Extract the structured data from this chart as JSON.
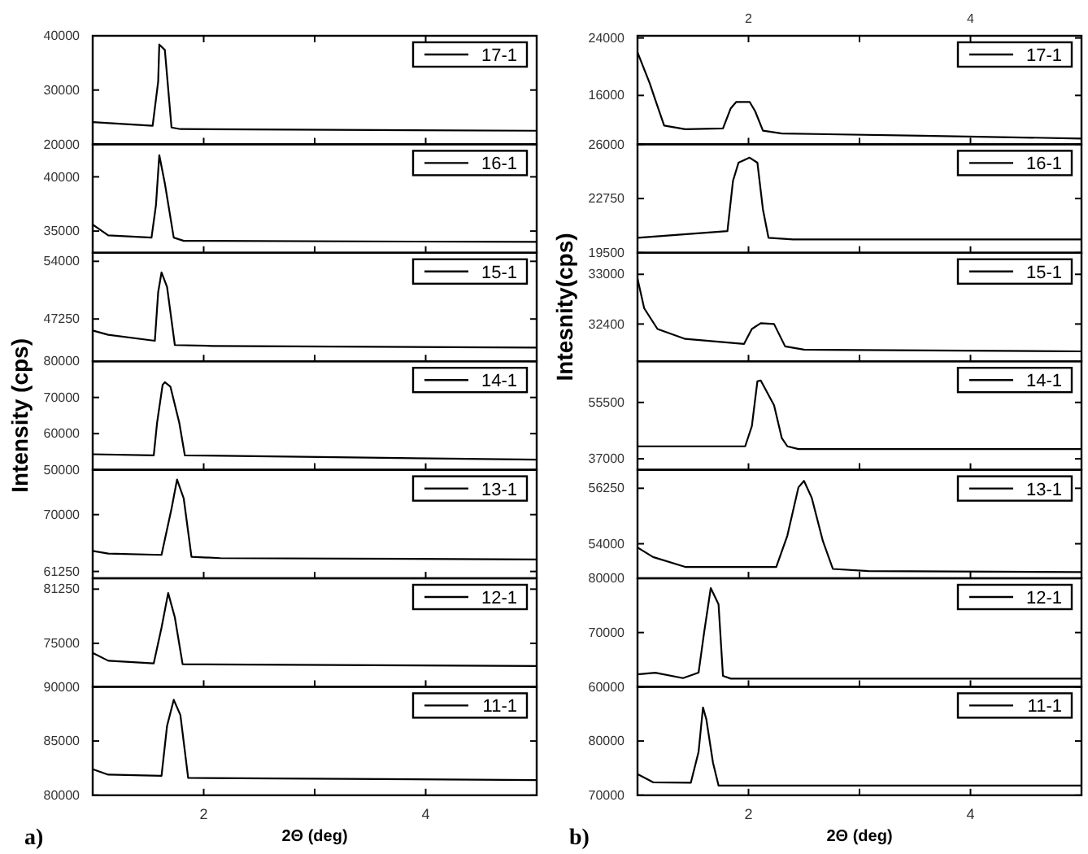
{
  "chart_data": [
    {
      "type": "line",
      "xlim": [
        1,
        5
      ],
      "xticks": [
        {
          "value": 2,
          "label": null
        },
        {
          "value": 3,
          "label": null
        },
        {
          "value": 4,
          "label": null
        }
      ],
      "ylim": [
        20000,
        40000
      ],
      "yticks": [
        20000,
        30000,
        40000
      ],
      "tick_labels": "y",
      "legend": "top right",
      "series": [
        {
          "name": "17-1",
          "color": "#000000",
          "x": [
            1.0,
            1.54,
            1.59,
            1.6,
            1.65,
            1.71,
            1.79,
            5.0
          ],
          "values": [
            24100,
            23400,
            31600,
            38400,
            37400,
            23100,
            22800,
            22500
          ]
        }
      ]
    },
    {
      "type": "line",
      "xlim": [
        1,
        5
      ],
      "xticks": [
        {
          "value": 2,
          "label": null
        },
        {
          "value": 3,
          "label": null
        },
        {
          "value": 4,
          "label": null
        }
      ],
      "ylim": [
        33000,
        43000
      ],
      "yticks": [
        35000,
        40000
      ],
      "tick_labels": "y",
      "legend": "top right",
      "series": [
        {
          "name": "16-1",
          "color": "#000000",
          "x": [
            1.0,
            1.14,
            1.53,
            1.57,
            1.6,
            1.65,
            1.73,
            1.82,
            5.0
          ],
          "values": [
            35600,
            34600,
            34400,
            37400,
            42000,
            39400,
            34400,
            34100,
            34000
          ]
        }
      ]
    },
    {
      "type": "line",
      "xlim": [
        1,
        5
      ],
      "xticks": [
        {
          "value": 2,
          "label": null
        },
        {
          "value": 3,
          "label": null
        },
        {
          "value": 4,
          "label": null
        }
      ],
      "ylim": [
        42300,
        55000
      ],
      "yticks": [
        47250,
        54000
      ],
      "tick_labels": "y",
      "legend": "top right",
      "series": [
        {
          "name": "15-1",
          "color": "#000000",
          "x": [
            1.0,
            1.14,
            1.56,
            1.59,
            1.62,
            1.67,
            1.74,
            2.08,
            5.0
          ],
          "values": [
            45900,
            45400,
            44700,
            50400,
            52700,
            51000,
            44200,
            44100,
            43900
          ]
        }
      ]
    },
    {
      "type": "line",
      "xlim": [
        1,
        5
      ],
      "xticks": [
        {
          "value": 2,
          "label": null
        },
        {
          "value": 3,
          "label": null
        },
        {
          "value": 4,
          "label": null
        }
      ],
      "ylim": [
        50000,
        80000
      ],
      "yticks": [
        50000,
        60000,
        70000,
        80000
      ],
      "tick_labels": "y",
      "legend": "top right",
      "ylabel": "Intensity (cps)",
      "series": [
        {
          "name": "14-1",
          "color": "#000000",
          "x": [
            1.0,
            1.55,
            1.58,
            1.63,
            1.65,
            1.7,
            1.78,
            1.83,
            5.0
          ],
          "values": [
            54300,
            54000,
            63000,
            73500,
            74200,
            73000,
            63000,
            54000,
            52800
          ]
        }
      ]
    },
    {
      "type": "line",
      "xlim": [
        1,
        5
      ],
      "xticks": [
        {
          "value": 2,
          "label": null
        },
        {
          "value": 3,
          "label": null
        },
        {
          "value": 4,
          "label": null
        }
      ],
      "ylim": [
        60200,
        76900
      ],
      "yticks": [
        61250,
        70000
      ],
      "tick_labels": "y",
      "legend": "top right",
      "series": [
        {
          "name": "13-1",
          "color": "#000000",
          "x": [
            1.0,
            1.14,
            1.62,
            1.71,
            1.76,
            1.82,
            1.89,
            2.15,
            5.0
          ],
          "values": [
            64400,
            64000,
            63800,
            70900,
            75400,
            72500,
            63500,
            63300,
            63100
          ]
        }
      ]
    },
    {
      "type": "line",
      "xlim": [
        1,
        5
      ],
      "xticks": [
        {
          "value": 2,
          "label": null
        },
        {
          "value": 3,
          "label": null
        },
        {
          "value": 4,
          "label": null
        }
      ],
      "ylim": [
        70000,
        82500
      ],
      "yticks": [
        75000,
        81250
      ],
      "tick_labels": "y",
      "legend": "top right",
      "series": [
        {
          "name": "12-1",
          "color": "#000000",
          "x": [
            1.0,
            1.14,
            1.55,
            1.62,
            1.68,
            1.74,
            1.81,
            5.0
          ],
          "values": [
            73900,
            73000,
            72700,
            76800,
            80800,
            78000,
            72600,
            72400
          ]
        }
      ]
    },
    {
      "type": "line",
      "xlim": [
        1,
        5
      ],
      "xticks": [
        {
          "value": 2,
          "label": "2"
        },
        {
          "value": 3,
          "label": null
        },
        {
          "value": 4,
          "label": "4"
        }
      ],
      "ylim": [
        80000,
        90000
      ],
      "yticks": [
        80000,
        85000,
        90000
      ],
      "legend": "top right",
      "xlabel": "2Θ (deg)",
      "annotations": [
        "a)"
      ],
      "series": [
        {
          "name": "11-1",
          "color": "#000000",
          "x": [
            1.0,
            1.14,
            1.62,
            1.67,
            1.73,
            1.79,
            1.86,
            5.0
          ],
          "values": [
            82400,
            81900,
            81800,
            86400,
            88800,
            87400,
            81600,
            81400
          ]
        }
      ]
    },
    {
      "type": "line",
      "xlim": [
        1,
        5
      ],
      "xticks": [
        {
          "value": 2,
          "label": null
        },
        {
          "value": 3,
          "label": null
        },
        {
          "value": 4,
          "label": null
        }
      ],
      "x2lim": [
        1,
        5
      ],
      "x2ticks": [
        2,
        {
          "value": 3,
          "label": null
        },
        4
      ],
      "ylim": [
        9200,
        24300
      ],
      "yticks": [
        16000,
        24000
      ],
      "tick_labels": "y",
      "legend": "top right",
      "series": [
        {
          "name": "17-1",
          "color": "#000000",
          "x": [
            1.0,
            1.11,
            1.16,
            1.24,
            1.43,
            1.77,
            1.84,
            1.89,
            2.01,
            2.06,
            2.13,
            2.3,
            3.56,
            5.0
          ],
          "values": [
            22000,
            17700,
            15400,
            11800,
            11300,
            11400,
            14200,
            15100,
            15100,
            13800,
            11100,
            10700,
            10400,
            10000
          ]
        }
      ]
    },
    {
      "type": "line",
      "xlim": [
        1,
        5
      ],
      "xticks": [
        {
          "value": 2,
          "label": null
        },
        {
          "value": 3,
          "label": null
        },
        {
          "value": 4,
          "label": null
        }
      ],
      "ylim": [
        19500,
        26000
      ],
      "yticks": [
        19500,
        22750,
        26000
      ],
      "tick_labels": "y",
      "legend": "top right",
      "series": [
        {
          "name": "16-1",
          "color": "#000000",
          "x": [
            1.0,
            1.81,
            1.86,
            1.91,
            2.01,
            2.08,
            2.13,
            2.18,
            2.4,
            5.0
          ],
          "values": [
            20400,
            20800,
            23800,
            24900,
            25200,
            24900,
            22100,
            20400,
            20300,
            20300
          ]
        }
      ]
    },
    {
      "type": "line",
      "xlim": [
        1,
        5
      ],
      "xticks": [
        {
          "value": 2,
          "label": null
        },
        {
          "value": 3,
          "label": null
        },
        {
          "value": 4,
          "label": null
        }
      ],
      "ylim": [
        31950,
        33260
      ],
      "yticks": [
        32400,
        33000
      ],
      "tick_labels": "y",
      "legend": "top right",
      "ylabel": "Intesnity(cps)",
      "series": [
        {
          "name": "15-1",
          "color": "#000000",
          "x": [
            1.0,
            1.06,
            1.18,
            1.43,
            1.96,
            2.03,
            2.11,
            2.23,
            2.33,
            2.5,
            5.0
          ],
          "values": [
            32950,
            32590,
            32340,
            32220,
            32160,
            32340,
            32410,
            32400,
            32130,
            32090,
            32070
          ]
        }
      ]
    },
    {
      "type": "line",
      "xlim": [
        1,
        5
      ],
      "xticks": [
        {
          "value": 2,
          "label": null
        },
        {
          "value": 3,
          "label": null
        },
        {
          "value": 4,
          "label": null
        }
      ],
      "ylim": [
        33400,
        69000
      ],
      "yticks": [
        37000,
        55500
      ],
      "tick_labels": "y",
      "legend": "top right",
      "series": [
        {
          "name": "14-1",
          "color": "#000000",
          "x": [
            1.0,
            1.97,
            2.03,
            2.08,
            2.11,
            2.23,
            2.3,
            2.35,
            2.45,
            5.0
          ],
          "values": [
            41100,
            41100,
            47700,
            62400,
            62700,
            54600,
            43800,
            41100,
            40200,
            40200
          ]
        }
      ]
    },
    {
      "type": "line",
      "xlim": [
        1,
        5
      ],
      "xticks": [
        {
          "value": 2,
          "label": null
        },
        {
          "value": 3,
          "label": null
        },
        {
          "value": 4,
          "label": null
        }
      ],
      "ylim": [
        52600,
        57000
      ],
      "yticks": [
        54000,
        56250
      ],
      "tick_labels": "y",
      "legend": "top right",
      "series": [
        {
          "name": "13-1",
          "color": "#000000",
          "x": [
            1.0,
            1.14,
            1.43,
            2.25,
            2.35,
            2.45,
            2.5,
            2.57,
            2.67,
            2.76,
            3.08,
            5.0
          ],
          "values": [
            53850,
            53460,
            53060,
            53060,
            54330,
            56290,
            56550,
            55860,
            54110,
            52980,
            52890,
            52850
          ]
        }
      ]
    },
    {
      "type": "line",
      "xlim": [
        1,
        5
      ],
      "xticks": [
        {
          "value": 2,
          "label": null
        },
        {
          "value": 3,
          "label": null
        },
        {
          "value": 4,
          "label": null
        }
      ],
      "ylim": [
        60000,
        80000
      ],
      "yticks": [
        60000,
        70000,
        80000
      ],
      "tick_labels": "y",
      "legend": "top right",
      "series": [
        {
          "name": "12-1",
          "color": "#000000",
          "x": [
            1.0,
            1.16,
            1.41,
            1.55,
            1.6,
            1.66,
            1.73,
            1.77,
            1.84,
            5.0
          ],
          "values": [
            62300,
            62600,
            61600,
            62600,
            70000,
            78200,
            75200,
            62000,
            61500,
            61500
          ]
        }
      ]
    },
    {
      "type": "line",
      "xlim": [
        1,
        5
      ],
      "xticks": [
        {
          "value": 2,
          "label": "2"
        },
        {
          "value": 3,
          "label": null
        },
        {
          "value": 4,
          "label": "4"
        }
      ],
      "ylim": [
        70000,
        90000
      ],
      "yticks": [
        70000,
        80000
      ],
      "legend": "top right",
      "xlabel": "2Θ (deg)",
      "annotations": [
        "b)"
      ],
      "series": [
        {
          "name": "11-1",
          "color": "#000000",
          "x": [
            1.0,
            1.14,
            1.48,
            1.55,
            1.59,
            1.62,
            1.68,
            1.73,
            5.0
          ],
          "values": [
            73900,
            72400,
            72300,
            78000,
            86200,
            84000,
            76000,
            71800,
            71800
          ]
        }
      ]
    }
  ]
}
